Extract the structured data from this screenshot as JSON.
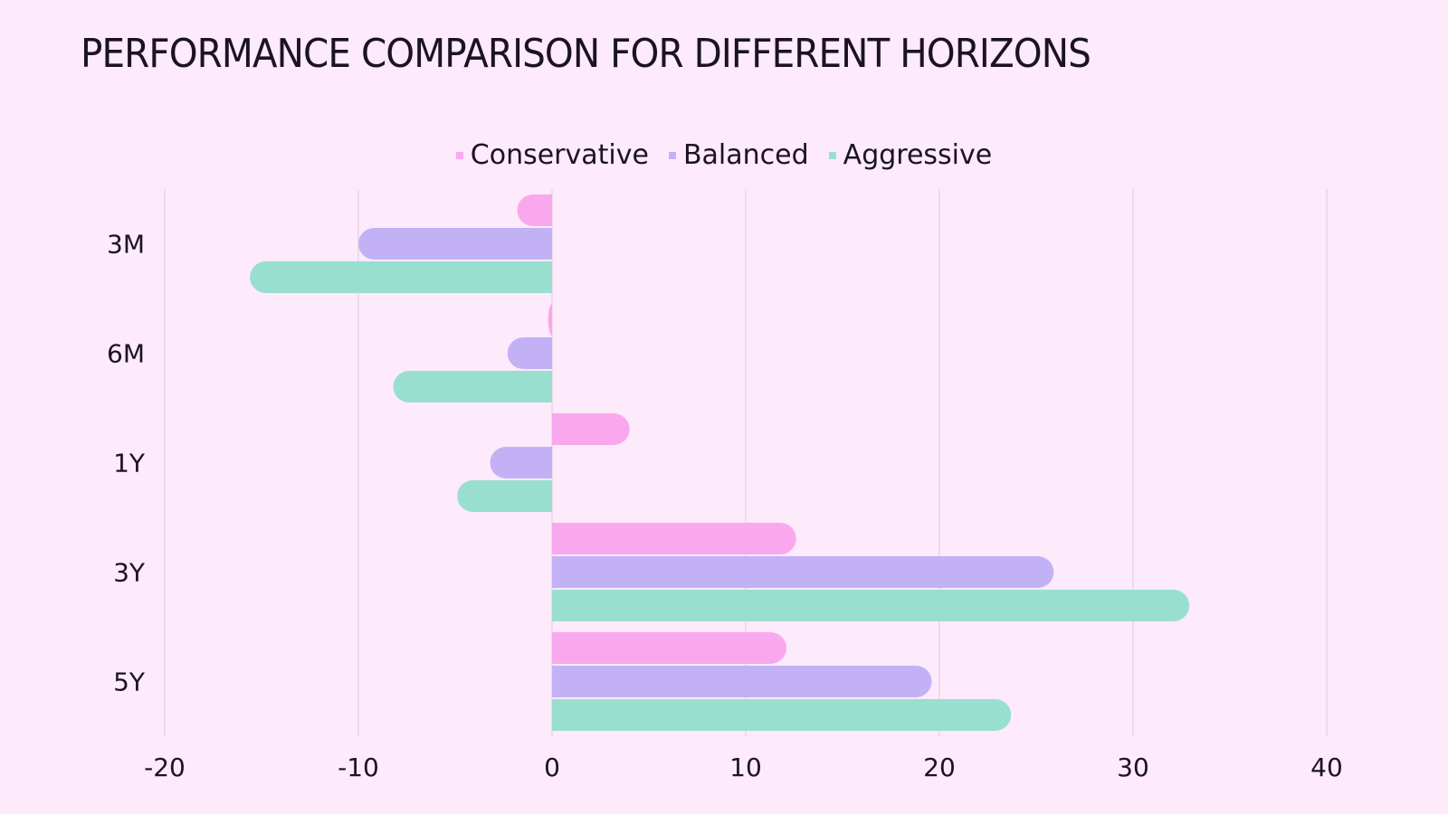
{
  "title": "PERFORMANCE COMPARISON FOR DIFFERENT HORIZONS",
  "chart_data": {
    "type": "bar",
    "orientation": "horizontal",
    "categories": [
      "3M",
      "6M",
      "1Y",
      "3Y",
      "5Y"
    ],
    "series": [
      {
        "name": "Conservative",
        "color": "#f9a8ee",
        "values": [
          -1.8,
          -0.2,
          4.0,
          12.6,
          12.1
        ]
      },
      {
        "name": "Balanced",
        "color": "#c3b1f6",
        "values": [
          -10.0,
          -2.3,
          -3.2,
          25.9,
          19.6
        ]
      },
      {
        "name": "Aggressive",
        "color": "#98dfcf",
        "values": [
          -15.6,
          -8.2,
          -4.9,
          32.9,
          23.7
        ]
      }
    ],
    "xlim": [
      -20,
      40
    ],
    "xticks": [
      "-20",
      "-10",
      "0",
      "10",
      "20",
      "30",
      "40"
    ],
    "grid": "vertical",
    "legend_position": "top-center"
  }
}
